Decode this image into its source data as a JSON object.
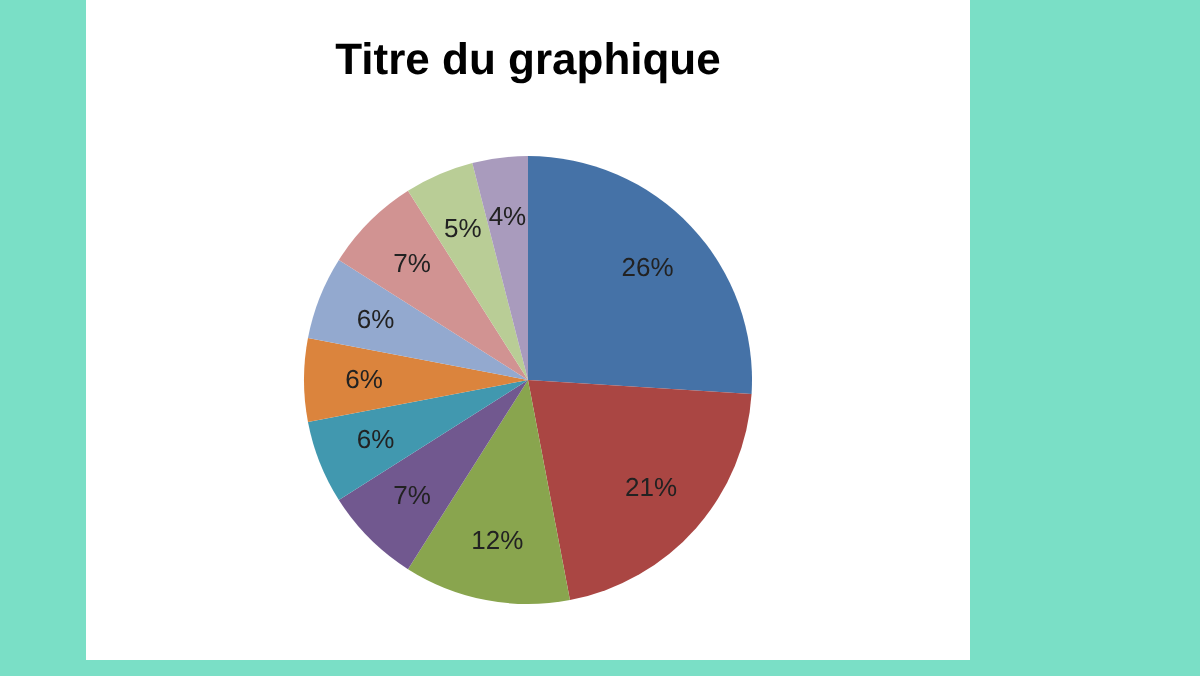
{
  "chart_data": {
    "type": "pie",
    "title": "Titre du graphique",
    "categories": [
      null,
      null,
      null,
      null,
      null,
      null,
      null,
      null,
      null,
      null
    ],
    "values": [
      26,
      21,
      12,
      7,
      6,
      6,
      6,
      7,
      5,
      4
    ],
    "value_labels": [
      "26%",
      "21%",
      "12%",
      "7%",
      "6%",
      "6%",
      "6%",
      "7%",
      "5%",
      "4%"
    ],
    "colors": [
      "#4572a7",
      "#aa4643",
      "#89a54e",
      "#71588f",
      "#4198af",
      "#db843d",
      "#93a9cf",
      "#d19392",
      "#b9cd96",
      "#a99bbd"
    ],
    "legend": false
  }
}
